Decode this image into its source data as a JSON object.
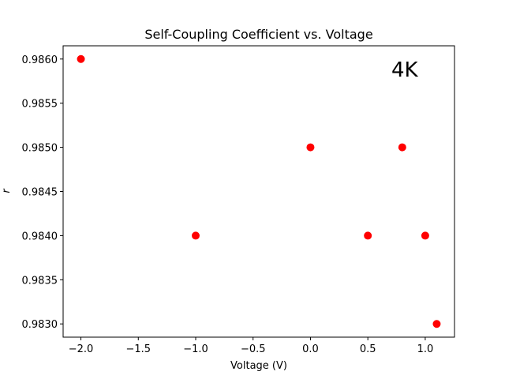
{
  "chart_data": {
    "type": "scatter",
    "title": "Self-Coupling Coefficient vs. Voltage",
    "xlabel": "Voltage (V)",
    "ylabel": "r",
    "annotation": "4K",
    "xlim": [
      -2.155,
      1.255
    ],
    "ylim": [
      0.98285,
      0.98615
    ],
    "xticks": [
      -2.0,
      -1.5,
      -1.0,
      -0.5,
      0.0,
      0.5,
      1.0
    ],
    "xtick_labels": [
      "−2.0",
      "−1.5",
      "−1.0",
      "−0.5",
      "0.0",
      "0.5",
      "1.0"
    ],
    "yticks": [
      0.983,
      0.9835,
      0.984,
      0.9845,
      0.985,
      0.9855,
      0.986
    ],
    "ytick_labels": [
      "0.9830",
      "0.9835",
      "0.9840",
      "0.9845",
      "0.9850",
      "0.9855",
      "0.9860"
    ],
    "grid": false,
    "series": [
      {
        "color": "#ff0000",
        "marker": "circle",
        "x": [
          -2.0,
          -1.0,
          0.0,
          0.5,
          0.8,
          1.0,
          1.1
        ],
        "y": [
          0.986,
          0.984,
          0.985,
          0.984,
          0.985,
          0.984,
          0.983
        ]
      }
    ]
  }
}
